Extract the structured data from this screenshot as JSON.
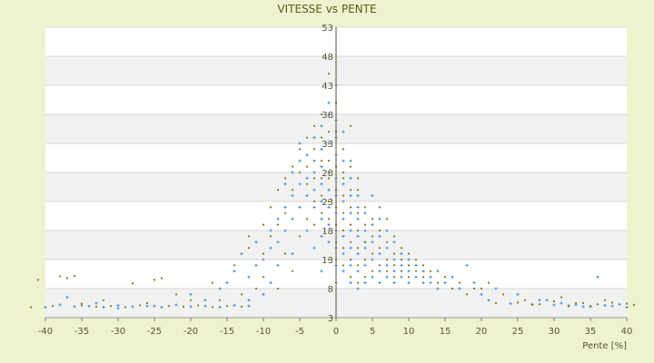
{
  "chart_data": {
    "type": "scatter",
    "title": "VITESSE vs PENTE",
    "xlabel": "Pente [%]",
    "ylabel": "",
    "xlim": [
      -40,
      40
    ],
    "ylim": [
      3,
      53
    ],
    "x_ticks": [
      "-40",
      "-35",
      "-30",
      "-25",
      "-20",
      "-15",
      "-10",
      "-5",
      "0",
      "5",
      "10",
      "15",
      "20",
      "25",
      "30",
      "35",
      "40"
    ],
    "y_ticks": [
      "53",
      "48",
      "43",
      "38",
      "33",
      "28",
      "23",
      "18",
      "13",
      "8",
      "3"
    ],
    "grid": true,
    "background_bands": true,
    "series": [
      {
        "color": "#2f8fd8",
        "marker": "plus",
        "points": [
          [
            -40,
            4.8
          ],
          [
            -38,
            5.2
          ],
          [
            -36,
            4.9
          ],
          [
            -34,
            5.0
          ],
          [
            -32,
            4.8
          ],
          [
            -30,
            5.1
          ],
          [
            -28,
            4.9
          ],
          [
            -26,
            5.0
          ],
          [
            -24,
            4.8
          ],
          [
            -22,
            5.2
          ],
          [
            -20,
            4.9
          ],
          [
            -18,
            5.0
          ],
          [
            -16,
            4.8
          ],
          [
            -14,
            5.1
          ],
          [
            -12,
            5.0
          ],
          [
            -14,
            11
          ],
          [
            -12,
            10
          ],
          [
            -15,
            9
          ],
          [
            -11,
            12
          ],
          [
            -13,
            14
          ],
          [
            -10,
            13
          ],
          [
            -9,
            15
          ],
          [
            -8,
            16
          ],
          [
            -7,
            18
          ],
          [
            -7,
            22
          ],
          [
            -6,
            24
          ],
          [
            -6,
            20
          ],
          [
            -5,
            26
          ],
          [
            -5,
            30
          ],
          [
            -5,
            33
          ],
          [
            -4,
            31
          ],
          [
            -4,
            27
          ],
          [
            -4,
            24
          ],
          [
            -3,
            34
          ],
          [
            -3,
            30
          ],
          [
            -3,
            25
          ],
          [
            -3,
            22
          ],
          [
            -2,
            36
          ],
          [
            -2,
            32
          ],
          [
            -2,
            29
          ],
          [
            -2,
            26
          ],
          [
            -2,
            23
          ],
          [
            -2,
            20
          ],
          [
            -1,
            38
          ],
          [
            -1,
            33
          ],
          [
            -1,
            28
          ],
          [
            -1,
            25
          ],
          [
            -1,
            22
          ],
          [
            -1,
            19
          ],
          [
            -1,
            16
          ],
          [
            0,
            43
          ],
          [
            0,
            37
          ],
          [
            0,
            31
          ],
          [
            0,
            27
          ],
          [
            0,
            24
          ],
          [
            0,
            21
          ],
          [
            0,
            18
          ],
          [
            0,
            15
          ],
          [
            0,
            12
          ],
          [
            0,
            9
          ],
          [
            1,
            30
          ],
          [
            1,
            26
          ],
          [
            1,
            23
          ],
          [
            1,
            20
          ],
          [
            1,
            17
          ],
          [
            1,
            14
          ],
          [
            1,
            11
          ],
          [
            2,
            27
          ],
          [
            2,
            24
          ],
          [
            2,
            21
          ],
          [
            2,
            18
          ],
          [
            2,
            15
          ],
          [
            2,
            12
          ],
          [
            2,
            9
          ],
          [
            3,
            24
          ],
          [
            3,
            20
          ],
          [
            3,
            17
          ],
          [
            3,
            14
          ],
          [
            3,
            11
          ],
          [
            3,
            8
          ],
          [
            4,
            21
          ],
          [
            4,
            18
          ],
          [
            4,
            15
          ],
          [
            4,
            12
          ],
          [
            4,
            9
          ],
          [
            5,
            19
          ],
          [
            5,
            16
          ],
          [
            5,
            13
          ],
          [
            5,
            10
          ],
          [
            6,
            17
          ],
          [
            6,
            14
          ],
          [
            6,
            11
          ],
          [
            6,
            9
          ],
          [
            7,
            15
          ],
          [
            7,
            12
          ],
          [
            7,
            10
          ],
          [
            8,
            13
          ],
          [
            8,
            11
          ],
          [
            8,
            9
          ],
          [
            9,
            12
          ],
          [
            9,
            10
          ],
          [
            10,
            11
          ],
          [
            10,
            9
          ],
          [
            11,
            10
          ],
          [
            12,
            9
          ],
          [
            13,
            10
          ],
          [
            14,
            8
          ],
          [
            15,
            9
          ],
          [
            17,
            8
          ],
          [
            18,
            12
          ],
          [
            20,
            7
          ],
          [
            22,
            8
          ],
          [
            25,
            7
          ],
          [
            28,
            6
          ],
          [
            30,
            5.2
          ],
          [
            32,
            5.0
          ],
          [
            34,
            4.9
          ],
          [
            36,
            10
          ],
          [
            37,
            5.1
          ],
          [
            38,
            5.0
          ],
          [
            40,
            4.8
          ],
          [
            -3,
            15
          ],
          [
            -4,
            18
          ],
          [
            -6,
            14
          ],
          [
            -8,
            12
          ],
          [
            -2,
            11
          ],
          [
            1,
            35
          ],
          [
            -1,
            40
          ],
          [
            0,
            34
          ],
          [
            2,
            30
          ],
          [
            -5,
            22
          ],
          [
            -3,
            28
          ],
          [
            -2,
            17
          ],
          [
            3,
            22
          ],
          [
            4,
            16
          ],
          [
            -20,
            7
          ],
          [
            -25,
            5
          ],
          [
            -30,
            4.6
          ],
          [
            -18,
            6
          ],
          [
            -16,
            8
          ],
          [
            -33,
            5.5
          ],
          [
            -37,
            6.5
          ],
          [
            5,
            24
          ],
          [
            6,
            20
          ],
          [
            7,
            18
          ],
          [
            8,
            16
          ],
          [
            9,
            14
          ],
          [
            10,
            13
          ],
          [
            11,
            12
          ],
          [
            12,
            11
          ],
          [
            13,
            9
          ],
          [
            14,
            11
          ],
          [
            16,
            10
          ],
          [
            19,
            9
          ],
          [
            21,
            6
          ],
          [
            24,
            5.4
          ],
          [
            27,
            5.3
          ],
          [
            29,
            6
          ],
          [
            31,
            5.5
          ],
          [
            33,
            5.2
          ],
          [
            35,
            4.9
          ],
          [
            39,
            5.3
          ],
          [
            -9,
            9
          ],
          [
            -10,
            7
          ],
          [
            -12,
            6
          ],
          [
            -8,
            20
          ],
          [
            -7,
            26
          ],
          [
            -6,
            28
          ],
          [
            -9,
            18
          ],
          [
            -11,
            16
          ]
        ]
      },
      {
        "color": "#7a7a1e",
        "marker": "dot",
        "points": [
          [
            -42,
            4.8
          ],
          [
            -39,
            5.0
          ],
          [
            -37,
            9.8
          ],
          [
            -35,
            5.1
          ],
          [
            -33,
            4.9
          ],
          [
            -31,
            5.0
          ],
          [
            -29,
            4.8
          ],
          [
            -27,
            5.1
          ],
          [
            -25,
            9.5
          ],
          [
            -23,
            5.0
          ],
          [
            -21,
            4.9
          ],
          [
            -19,
            5.1
          ],
          [
            -17,
            4.8
          ],
          [
            -15,
            5.0
          ],
          [
            -13,
            4.9
          ],
          [
            -41,
            9.5
          ],
          [
            -38,
            10.1
          ],
          [
            -36,
            10.2
          ],
          [
            -24,
            9.8
          ],
          [
            -28,
            8.9
          ],
          [
            -20,
            6
          ],
          [
            -17,
            9
          ],
          [
            -14,
            12
          ],
          [
            -12,
            15
          ],
          [
            -10,
            14
          ],
          [
            -9,
            17
          ],
          [
            -8,
            19
          ],
          [
            -7,
            21
          ],
          [
            -6,
            25
          ],
          [
            -6,
            29
          ],
          [
            -5,
            32
          ],
          [
            -5,
            28
          ],
          [
            -4,
            34
          ],
          [
            -4,
            29
          ],
          [
            -4,
            26
          ],
          [
            -3,
            36
          ],
          [
            -3,
            32
          ],
          [
            -3,
            27
          ],
          [
            -3,
            23
          ],
          [
            -2,
            34
          ],
          [
            -2,
            30
          ],
          [
            -2,
            27
          ],
          [
            -2,
            24
          ],
          [
            -2,
            21
          ],
          [
            -1,
            45
          ],
          [
            -1,
            35
          ],
          [
            -1,
            30
          ],
          [
            -1,
            27
          ],
          [
            -1,
            23
          ],
          [
            -1,
            20
          ],
          [
            0,
            40
          ],
          [
            0,
            35
          ],
          [
            0,
            29
          ],
          [
            0,
            25
          ],
          [
            0,
            22
          ],
          [
            0,
            19
          ],
          [
            0,
            16
          ],
          [
            0,
            13
          ],
          [
            1,
            32
          ],
          [
            1,
            28
          ],
          [
            1,
            24
          ],
          [
            1,
            21
          ],
          [
            1,
            18
          ],
          [
            1,
            15
          ],
          [
            1,
            12
          ],
          [
            2,
            29
          ],
          [
            2,
            25
          ],
          [
            2,
            22
          ],
          [
            2,
            19
          ],
          [
            2,
            16
          ],
          [
            2,
            13
          ],
          [
            2,
            10
          ],
          [
            3,
            25
          ],
          [
            3,
            21
          ],
          [
            3,
            18
          ],
          [
            3,
            15
          ],
          [
            3,
            12
          ],
          [
            3,
            9
          ],
          [
            4,
            22
          ],
          [
            4,
            19
          ],
          [
            4,
            16
          ],
          [
            4,
            13
          ],
          [
            4,
            10
          ],
          [
            5,
            20
          ],
          [
            5,
            17
          ],
          [
            5,
            14
          ],
          [
            5,
            11
          ],
          [
            6,
            18
          ],
          [
            6,
            15
          ],
          [
            6,
            12
          ],
          [
            7,
            16
          ],
          [
            7,
            13
          ],
          [
            7,
            11
          ],
          [
            8,
            14
          ],
          [
            8,
            12
          ],
          [
            8,
            10
          ],
          [
            9,
            13
          ],
          [
            9,
            11
          ],
          [
            10,
            12
          ],
          [
            10,
            10
          ],
          [
            11,
            11
          ],
          [
            12,
            10
          ],
          [
            13,
            11
          ],
          [
            15,
            10
          ],
          [
            16,
            8
          ],
          [
            18,
            7
          ],
          [
            19,
            8
          ],
          [
            21,
            9
          ],
          [
            23,
            7
          ],
          [
            26,
            6
          ],
          [
            28,
            5.3
          ],
          [
            31,
            6.5
          ],
          [
            33,
            5.5
          ],
          [
            35,
            5.0
          ],
          [
            37,
            6
          ],
          [
            41,
            5.2
          ],
          [
            -5,
            17
          ],
          [
            -7,
            14
          ],
          [
            -3,
            19
          ],
          [
            -1,
            13
          ],
          [
            2,
            36
          ],
          [
            -2,
            38
          ],
          [
            1,
            27
          ],
          [
            3,
            27
          ],
          [
            -4,
            20
          ],
          [
            -6,
            11
          ],
          [
            -8,
            8
          ],
          [
            -16,
            6
          ],
          [
            -22,
            7
          ],
          [
            -26,
            5.5
          ],
          [
            -32,
            6
          ],
          [
            -35,
            5.4
          ],
          [
            6,
            22
          ],
          [
            7,
            20
          ],
          [
            8,
            17
          ],
          [
            9,
            15
          ],
          [
            10,
            14
          ],
          [
            11,
            13
          ],
          [
            12,
            12
          ],
          [
            14,
            9
          ],
          [
            17,
            9
          ],
          [
            20,
            8
          ],
          [
            22,
            5.5
          ],
          [
            25,
            5.6
          ],
          [
            27,
            5.2
          ],
          [
            30,
            5.8
          ],
          [
            32,
            5.1
          ],
          [
            34,
            5.5
          ],
          [
            36,
            5.3
          ],
          [
            38,
            5.6
          ],
          [
            40,
            5.4
          ],
          [
            -10,
            10
          ],
          [
            -11,
            8
          ],
          [
            -13,
            7
          ],
          [
            -9,
            22
          ],
          [
            -8,
            25
          ],
          [
            -7,
            27
          ],
          [
            -10,
            19
          ],
          [
            -12,
            17
          ]
        ]
      }
    ]
  }
}
